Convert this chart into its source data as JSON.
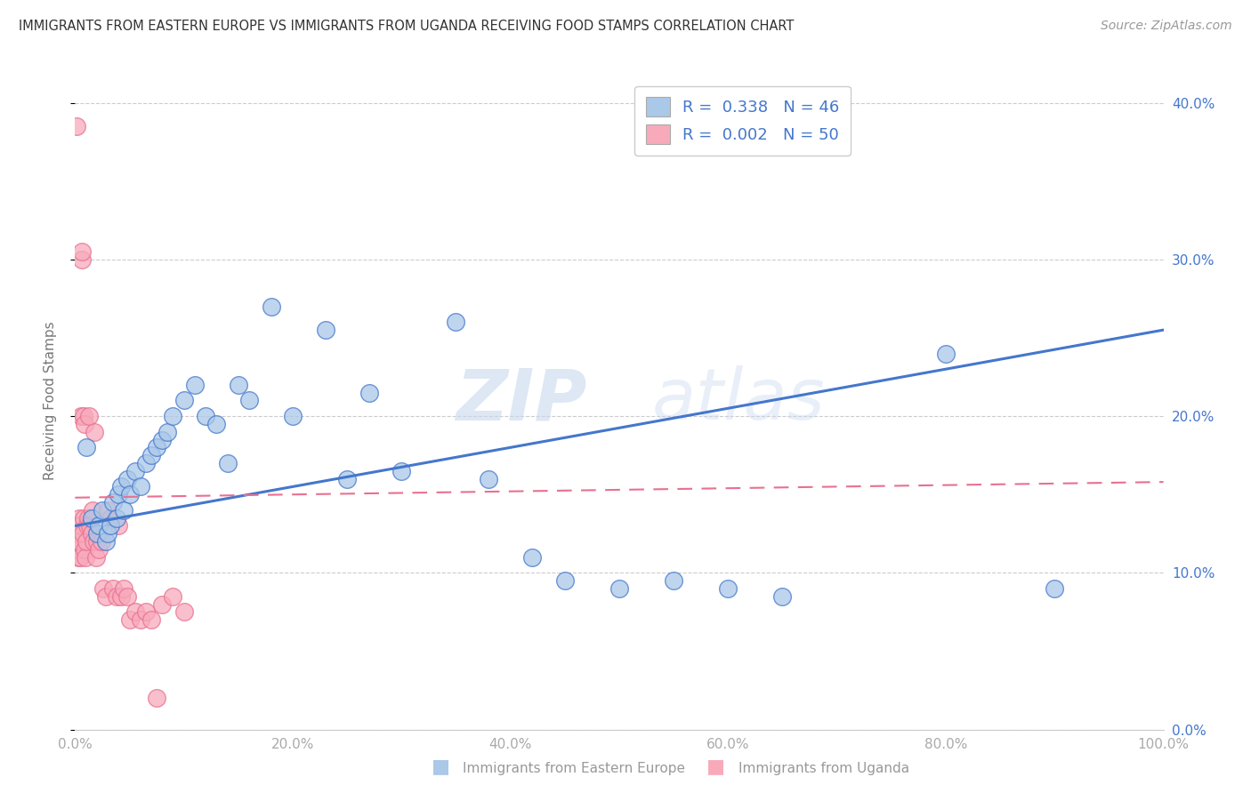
{
  "title": "IMMIGRANTS FROM EASTERN EUROPE VS IMMIGRANTS FROM UGANDA RECEIVING FOOD STAMPS CORRELATION CHART",
  "source": "Source: ZipAtlas.com",
  "ylabel": "Receiving Food Stamps",
  "legend_label_blue": "Immigrants from Eastern Europe",
  "legend_label_pink": "Immigrants from Uganda",
  "R_blue": 0.338,
  "N_blue": 46,
  "R_pink": 0.002,
  "N_pink": 50,
  "xlim": [
    0.0,
    100.0
  ],
  "ylim": [
    0.0,
    42.0
  ],
  "x_ticks": [
    0.0,
    20.0,
    40.0,
    60.0,
    80.0,
    100.0
  ],
  "y_ticks": [
    0.0,
    10.0,
    20.0,
    30.0,
    40.0
  ],
  "blue_color": "#aac8e8",
  "blue_line_color": "#4477cc",
  "pink_color": "#f8aabb",
  "pink_line_color": "#e87090",
  "watermark_zip": "ZIP",
  "watermark_atlas": "atlas",
  "blue_x": [
    1.0,
    1.5,
    2.0,
    2.2,
    2.5,
    2.8,
    3.0,
    3.2,
    3.5,
    3.8,
    4.0,
    4.2,
    4.5,
    4.8,
    5.0,
    5.5,
    6.0,
    6.5,
    7.0,
    7.5,
    8.0,
    8.5,
    9.0,
    10.0,
    11.0,
    12.0,
    13.0,
    14.0,
    15.0,
    16.0,
    18.0,
    20.0,
    23.0,
    25.0,
    27.0,
    30.0,
    35.0,
    38.0,
    42.0,
    45.0,
    50.0,
    55.0,
    60.0,
    65.0,
    80.0,
    90.0
  ],
  "blue_y": [
    18.0,
    13.5,
    12.5,
    13.0,
    14.0,
    12.0,
    12.5,
    13.0,
    14.5,
    13.5,
    15.0,
    15.5,
    14.0,
    16.0,
    15.0,
    16.5,
    15.5,
    17.0,
    17.5,
    18.0,
    18.5,
    19.0,
    20.0,
    21.0,
    22.0,
    20.0,
    19.5,
    17.0,
    22.0,
    21.0,
    27.0,
    20.0,
    25.5,
    16.0,
    21.5,
    16.5,
    26.0,
    16.0,
    11.0,
    9.5,
    9.0,
    9.5,
    9.0,
    8.5,
    24.0,
    9.0
  ],
  "pink_x": [
    0.1,
    0.15,
    0.2,
    0.25,
    0.3,
    0.35,
    0.4,
    0.45,
    0.5,
    0.55,
    0.6,
    0.65,
    0.7,
    0.75,
    0.8,
    0.85,
    0.9,
    0.95,
    1.0,
    1.1,
    1.2,
    1.3,
    1.4,
    1.5,
    1.6,
    1.7,
    1.8,
    1.9,
    2.0,
    2.2,
    2.4,
    2.6,
    2.8,
    3.0,
    3.2,
    3.5,
    3.8,
    4.0,
    4.2,
    4.5,
    4.8,
    5.0,
    5.5,
    6.0,
    6.5,
    7.0,
    7.5,
    8.0,
    9.0,
    10.0
  ],
  "pink_y": [
    38.5,
    13.0,
    11.5,
    12.5,
    11.0,
    12.0,
    13.5,
    11.0,
    13.0,
    20.0,
    30.0,
    30.5,
    12.5,
    13.5,
    20.0,
    19.5,
    11.5,
    11.0,
    12.0,
    13.0,
    13.5,
    20.0,
    13.0,
    12.5,
    14.0,
    12.0,
    19.0,
    11.0,
    12.0,
    11.5,
    12.0,
    9.0,
    8.5,
    14.0,
    13.5,
    9.0,
    8.5,
    13.0,
    8.5,
    9.0,
    8.5,
    7.0,
    7.5,
    7.0,
    7.5,
    7.0,
    2.0,
    8.0,
    8.5,
    7.5
  ]
}
